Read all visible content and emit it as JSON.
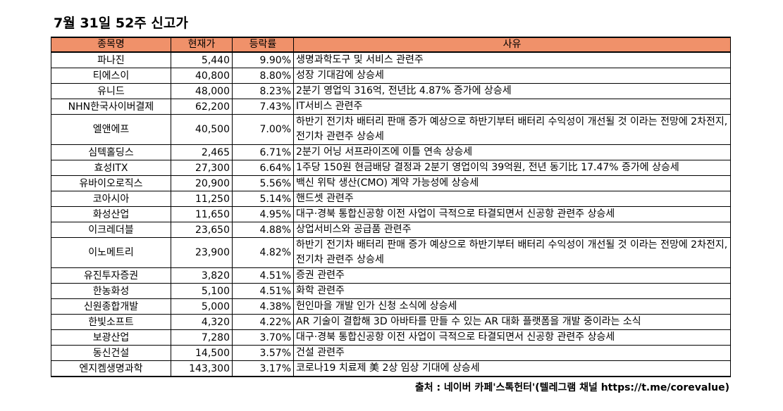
{
  "title": "7월 31일 52주 신고가",
  "columns": [
    "종목명",
    "현재가",
    "등락률",
    "사유"
  ],
  "rows": [
    {
      "name": "파나진",
      "price": "5,440",
      "change": "9.90%",
      "reason": "생명과학도구 및 서비스 관련주"
    },
    {
      "name": "티에스이",
      "price": "40,800",
      "change": "8.80%",
      "reason": "성장 기대감에 상승세"
    },
    {
      "name": "유니드",
      "price": "48,000",
      "change": "8.23%",
      "reason": "2분기 영업익 316억, 전년比 4.87% 증가에 상승세"
    },
    {
      "name": "NHN한국사이버결제",
      "price": "62,200",
      "change": "7.43%",
      "reason": "IT서비스 관련주"
    },
    {
      "name": "엘앤에프",
      "price": "40,500",
      "change": "7.00%",
      "reason": "하반기 전기차 배터리 판매 증가 예상으로 하반기부터 배터리 수익성이 개선될 것 이라는 전망에 2차전지, 전기차 관련주 상승세"
    },
    {
      "name": "심텍홀딩스",
      "price": "2,465",
      "change": "6.71%",
      "reason": "2분기 어닝 서프라이즈에 이틀 연속 상승세"
    },
    {
      "name": "효성ITX",
      "price": "27,300",
      "change": "6.64%",
      "reason": "1주당 150원 현금배당 결정과 2분기 영업이익 39억원, 전년 동기比 17.47% 증가에 상승세"
    },
    {
      "name": "유바이오로직스",
      "price": "20,900",
      "change": "5.56%",
      "reason": "백신 위탁 생산(CMO) 계약 가능성에 상승세"
    },
    {
      "name": "코아시아",
      "price": "11,250",
      "change": "5.14%",
      "reason": "핸드셋 관련주"
    },
    {
      "name": "화성산업",
      "price": "11,650",
      "change": "4.95%",
      "reason": "대구·경북 통합신공항 이전 사업이 극적으로 타결되면서 신공항 관련주 상승세"
    },
    {
      "name": "이크레더블",
      "price": "23,650",
      "change": "4.88%",
      "reason": "상업서비스와 공급품 관련주"
    },
    {
      "name": "이노메트리",
      "price": "23,900",
      "change": "4.82%",
      "reason": "하반기 전기차 배터리 판매 증가 예상으로 하반기부터 배터리 수익성이 개선될 것 이라는 전망에 2차전지, 전기차 관련주 상승세"
    },
    {
      "name": "유진투자증권",
      "price": "3,820",
      "change": "4.51%",
      "reason": "증권 관련주"
    },
    {
      "name": "한농화성",
      "price": "5,100",
      "change": "4.51%",
      "reason": "화학 관련주"
    },
    {
      "name": "신원종합개발",
      "price": "5,000",
      "change": "4.38%",
      "reason": "헌인마을 개발 인가 신청 소식에 상승세"
    },
    {
      "name": "한빛소프트",
      "price": "4,320",
      "change": "4.22%",
      "reason": "AR 기술이 결합해 3D 아바타를 만들 수 있는 AR 대화 플랫폼을 개발 중이라는 소식"
    },
    {
      "name": "보광산업",
      "price": "7,280",
      "change": "3.70%",
      "reason": "대구·경북 통합신공항 이전 사업이 극적으로 타결되면서 신공항 관련주 상승세"
    },
    {
      "name": "동신건설",
      "price": "14,500",
      "change": "3.57%",
      "reason": "건설 관련주"
    },
    {
      "name": "엔지켐생명과학",
      "price": "143,300",
      "change": "3.17%",
      "reason": "코로나19 치료제 美 2상 임상 기대에 상승세"
    }
  ],
  "source": "출처 : 네이버 카페'스톡헌터'(텔레그램 채널 https://t.me/corevalue)",
  "colors": {
    "header_bg": "#f0916a"
  }
}
